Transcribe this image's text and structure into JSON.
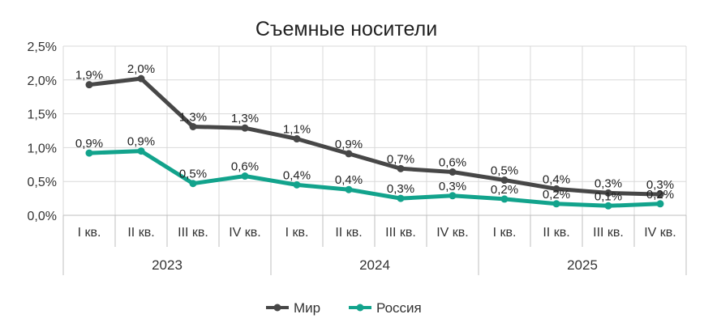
{
  "chart_data": {
    "type": "line",
    "title": "Съемные носители",
    "xlabel": "",
    "ylabel": "",
    "ylim": [
      0,
      2.5
    ],
    "yticks": [
      "0,0%",
      "0,5%",
      "1,0%",
      "1,5%",
      "2,0%",
      "2,5%"
    ],
    "grid": true,
    "legend": "bottom",
    "categories": [
      "I кв.",
      "II кв.",
      "III кв.",
      "IV кв.",
      "I кв.",
      "II кв.",
      "III кв.",
      "IV кв.",
      "I кв.",
      "II кв.",
      "III кв.",
      "IV кв."
    ],
    "groups": [
      {
        "label": "2023",
        "span": 4
      },
      {
        "label": "2024",
        "span": 4
      },
      {
        "label": "2025",
        "span": 4
      }
    ],
    "series": [
      {
        "name": "Мир",
        "color": "#474747",
        "values": [
          1.93,
          2.02,
          1.31,
          1.29,
          1.13,
          0.91,
          0.69,
          0.64,
          0.52,
          0.39,
          0.33,
          0.31
        ],
        "labels": [
          "1,9%",
          "2,0%",
          "1,3%",
          "1,3%",
          "1,1%",
          "0,9%",
          "0,7%",
          "0,6%",
          "0,5%",
          "0,4%",
          "0,3%",
          "0,3%"
        ]
      },
      {
        "name": "Россия",
        "color": "#12a38c",
        "values": [
          0.92,
          0.95,
          0.47,
          0.58,
          0.45,
          0.38,
          0.25,
          0.29,
          0.24,
          0.17,
          0.14,
          0.17
        ],
        "labels": [
          "0,9%",
          "0,9%",
          "0,5%",
          "0,6%",
          "0,4%",
          "0,4%",
          "0,3%",
          "0,3%",
          "0,2%",
          "0,2%",
          "0,1%",
          "0,2%"
        ]
      }
    ]
  }
}
